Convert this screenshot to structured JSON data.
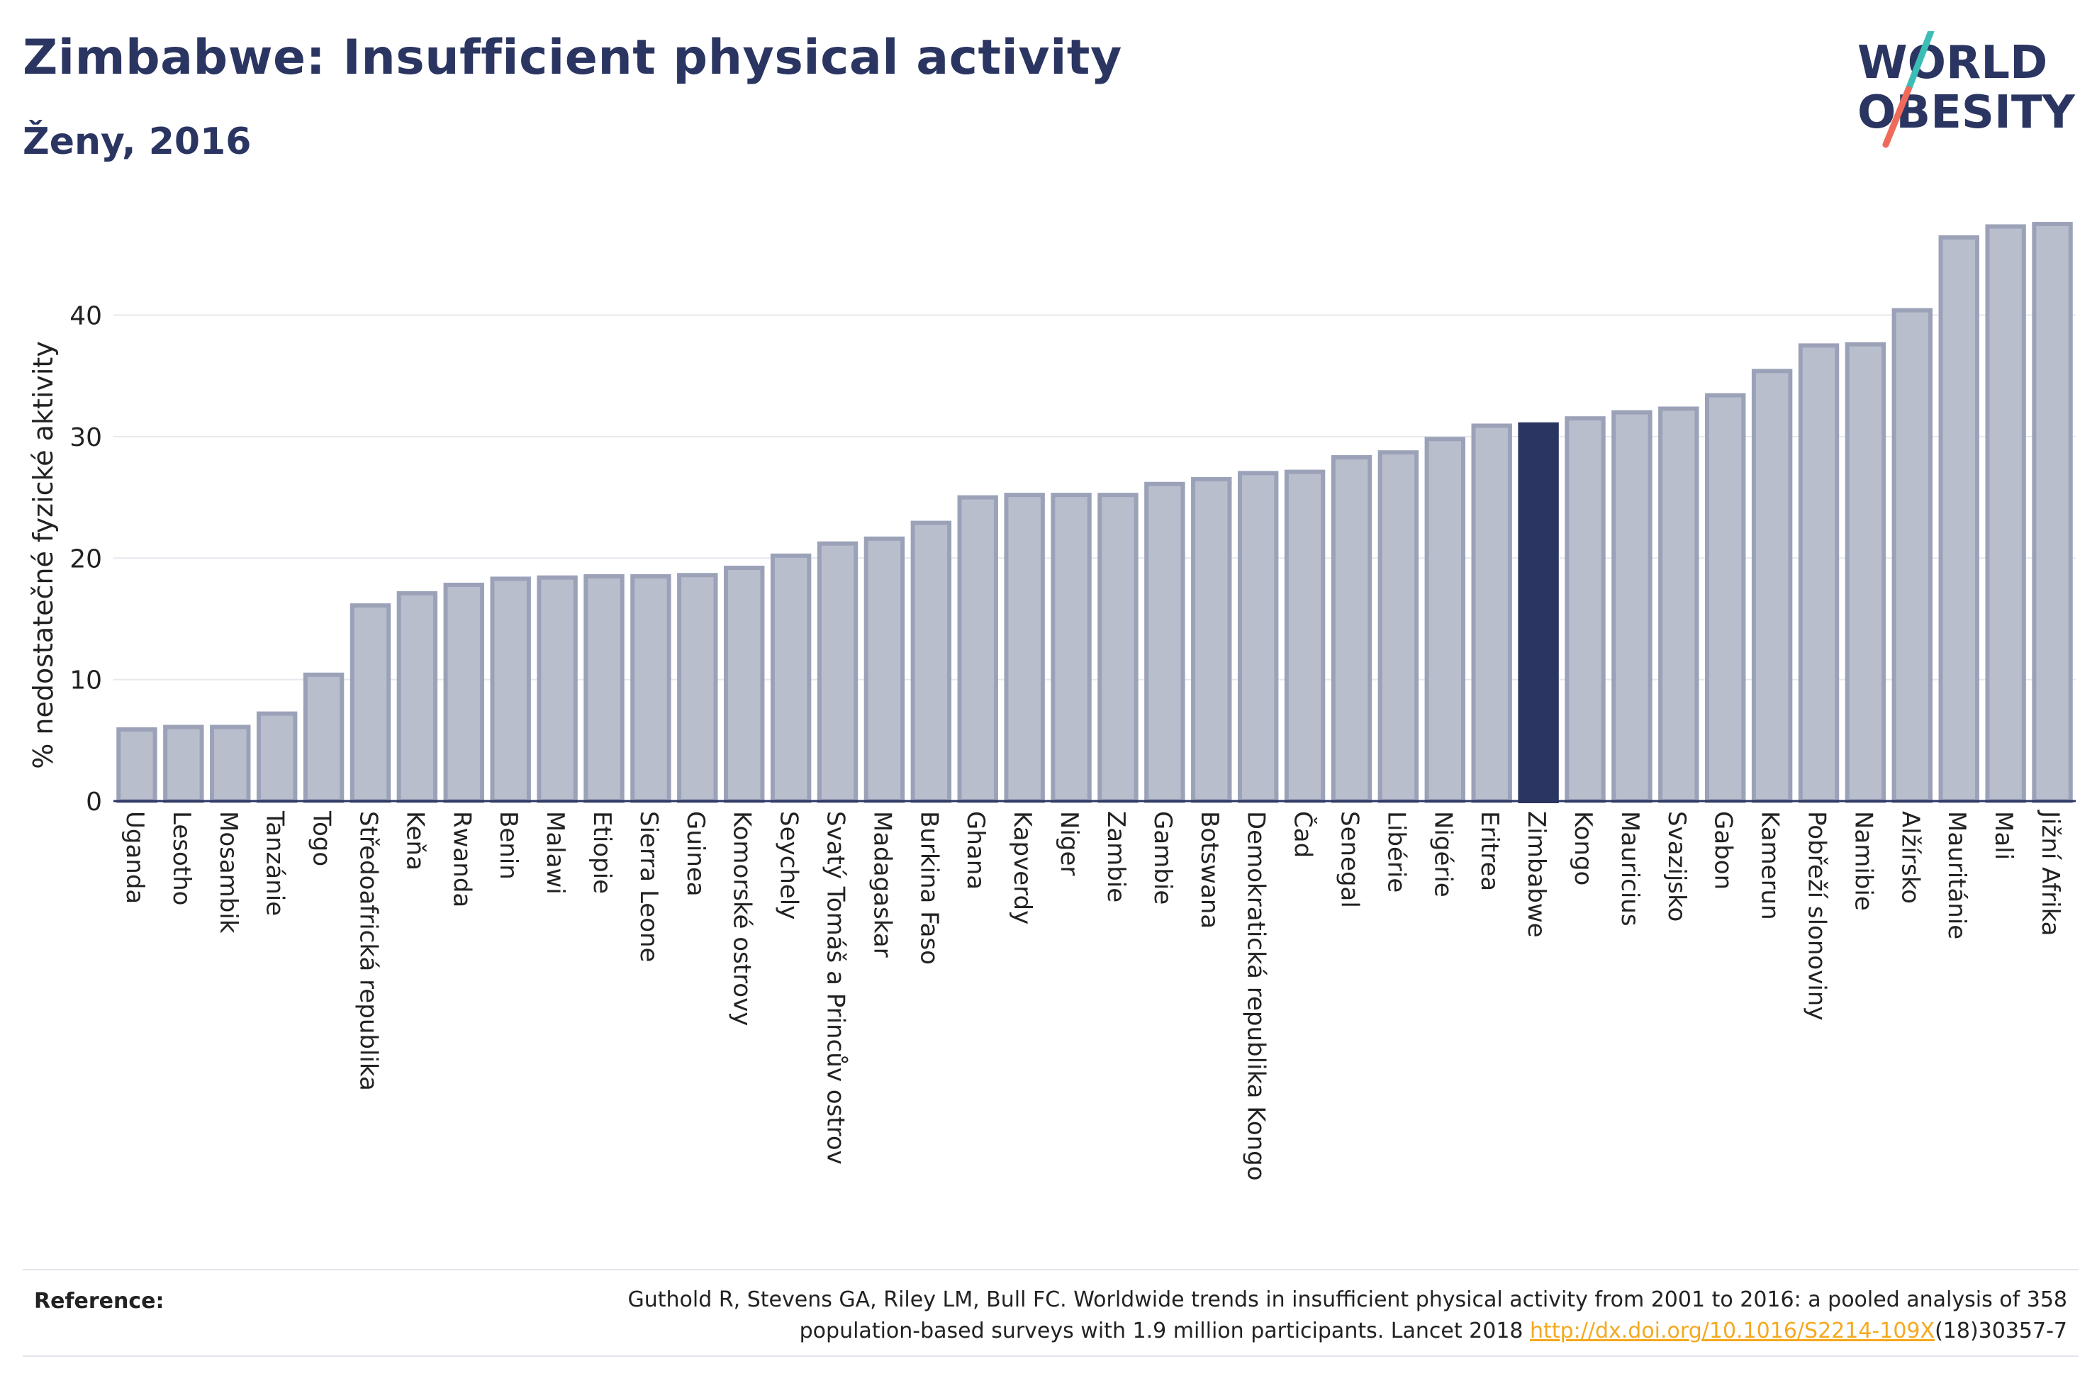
{
  "header": {
    "title": "Zimbabwe: Insufficient physical activity",
    "subtitle": "Ženy, 2016"
  },
  "logo": {
    "line1": "WORLD",
    "line2": "OBESITY",
    "colors": {
      "text": "#2b3561",
      "slash_teal": "#3cbdb5",
      "slash_coral": "#ef6a5a"
    }
  },
  "colors": {
    "bar": "#b9becd",
    "bar_stroke": "#9ba2b8",
    "highlight": "#2b3561",
    "grid": "#e6e8ee",
    "axis": "#2b3561"
  },
  "chart_data": {
    "type": "bar",
    "ylabel": "% nedostatečné fyzické aktivity",
    "ylim": [
      0,
      47.5
    ],
    "yticks": [
      0,
      10,
      20,
      30,
      40
    ],
    "grid": true,
    "highlight": "Zimbabwe",
    "categories": [
      "Uganda",
      "Lesotho",
      "Mosambik",
      "Tanzánie",
      "Togo",
      "Středoafrická republika",
      "Keňa",
      "Rwanda",
      "Benin",
      "Malawi",
      "Etiopie",
      "Sierra Leone",
      "Guinea",
      "Komorské ostrovy",
      "Seychely",
      "Svatý Tomáš a Princův ostrov",
      "Madagaskar",
      "Burkina Faso",
      "Ghana",
      "Kapverdy",
      "Niger",
      "Zambie",
      "Gambie",
      "Botswana",
      "Demokratická republika Kongo",
      "Čad",
      "Senegal",
      "Libérie",
      "Nigérie",
      "Eritrea",
      "Zimbabwe",
      "Kongo",
      "Mauricius",
      "Svazijsko",
      "Gabon",
      "Kamerun",
      "Pobřeží slonoviny",
      "Namibie",
      "Alžírsko",
      "Mauritánie",
      "Mali",
      "Jižní Afrika"
    ],
    "values": [
      5.9,
      6.1,
      6.1,
      7.2,
      10.4,
      16.1,
      17.1,
      17.8,
      18.3,
      18.4,
      18.5,
      18.5,
      18.6,
      19.2,
      20.2,
      21.2,
      21.6,
      22.9,
      25.0,
      25.2,
      25.2,
      25.2,
      26.1,
      26.5,
      27.0,
      27.1,
      28.3,
      28.7,
      29.8,
      30.9,
      31.0,
      31.5,
      32.0,
      32.3,
      33.4,
      35.4,
      37.5,
      37.6,
      40.4,
      46.4,
      47.3,
      47.5
    ]
  },
  "reference": {
    "label": "Reference:",
    "text_line1": "Guthold R, Stevens GA, Riley LM, Bull FC. Worldwide trends in insufficient physical activity from 2001 to 2016: a pooled analysis of 358",
    "text_line2_before": "population-based surveys with 1.9 million participants. Lancet 2018 ",
    "link_text": "http://dx.doi.org/10.1016/S2214-109X",
    "text_line2_after": "(18)30357-7"
  }
}
